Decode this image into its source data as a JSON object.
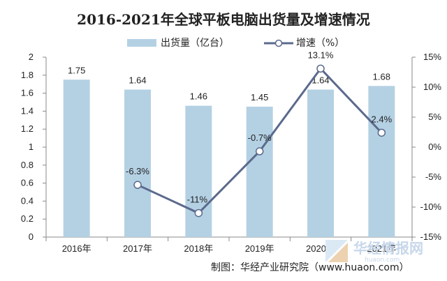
{
  "chart_data": {
    "type": "bar",
    "title": "2016-2021年全球平板电脑出货量及增速情况",
    "categories": [
      "2016年",
      "2017年",
      "2018年",
      "2019年",
      "2020年",
      "2021年"
    ],
    "series": [
      {
        "name": "出货量（亿台）",
        "type": "bar",
        "axis": "left",
        "values": [
          1.75,
          1.64,
          1.46,
          1.45,
          1.64,
          1.68
        ],
        "labels": [
          "1.75",
          "1.64",
          "1.46",
          "1.45",
          "1.64",
          "1.68"
        ],
        "color": "#b4d1e4"
      },
      {
        "name": "增速（%）",
        "type": "line",
        "axis": "right",
        "values": [
          null,
          -6.3,
          -11,
          -0.7,
          13.1,
          2.4
        ],
        "labels": [
          "",
          "-6.3%",
          "-11%",
          "-0.7%",
          "13.1%",
          "2.4%"
        ],
        "color": "#5b6a8c"
      }
    ],
    "y_left": {
      "ylim": [
        0,
        2
      ],
      "ticks": [
        "0",
        "0.2",
        "0.4",
        "0.6",
        "0.8",
        "1",
        "1.2",
        "1.4",
        "1.6",
        "1.8",
        "2"
      ]
    },
    "y_right": {
      "ylim": [
        -15,
        15
      ],
      "ticks": [
        "-15%",
        "-10%",
        "-5%",
        "0%",
        "5%",
        "10%",
        "15%"
      ]
    },
    "legend": "top-center",
    "grid": false
  },
  "credit": "制图：华经产业研究院（www.huaon.com）",
  "watermark": {
    "text": "华经情报网",
    "sub": "huaon.com"
  }
}
